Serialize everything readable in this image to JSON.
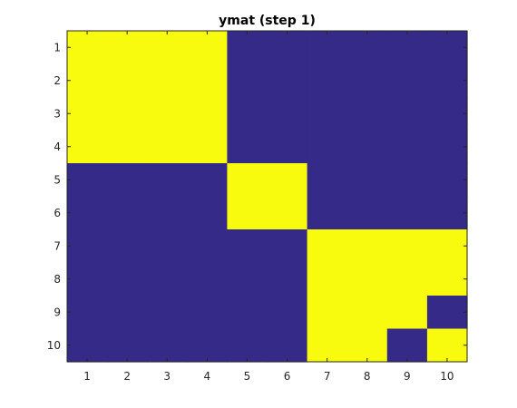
{
  "chart_data": {
    "type": "heatmap",
    "title": "ymat (step 1)",
    "xlabel": "",
    "ylabel": "",
    "x_categories": [
      "1",
      "2",
      "3",
      "4",
      "5",
      "6",
      "7",
      "8",
      "9",
      "10"
    ],
    "y_categories": [
      "1",
      "2",
      "3",
      "4",
      "5",
      "6",
      "7",
      "8",
      "9",
      "10"
    ],
    "colormap": {
      "0": "#352a87",
      "1": "#f9fb0e"
    },
    "matrix": [
      [
        1,
        1,
        1,
        1,
        0,
        0,
        0,
        0,
        0,
        0
      ],
      [
        1,
        1,
        1,
        1,
        0,
        0,
        0,
        0,
        0,
        0
      ],
      [
        1,
        1,
        1,
        1,
        0,
        0,
        0,
        0,
        0,
        0
      ],
      [
        1,
        1,
        1,
        1,
        0,
        0,
        0,
        0,
        0,
        0
      ],
      [
        0,
        0,
        0,
        0,
        1,
        1,
        0,
        0,
        0,
        0
      ],
      [
        0,
        0,
        0,
        0,
        1,
        1,
        0,
        0,
        0,
        0
      ],
      [
        0,
        0,
        0,
        0,
        0,
        0,
        1,
        1,
        1,
        1
      ],
      [
        0,
        0,
        0,
        0,
        0,
        0,
        1,
        1,
        1,
        1
      ],
      [
        0,
        0,
        0,
        0,
        0,
        0,
        1,
        1,
        1,
        0
      ],
      [
        0,
        0,
        0,
        0,
        0,
        0,
        1,
        1,
        0,
        1
      ]
    ],
    "grid": false,
    "legend": "none"
  },
  "colors": {
    "axis": "#262626",
    "low": "#352a87",
    "high": "#f9fb0e"
  }
}
